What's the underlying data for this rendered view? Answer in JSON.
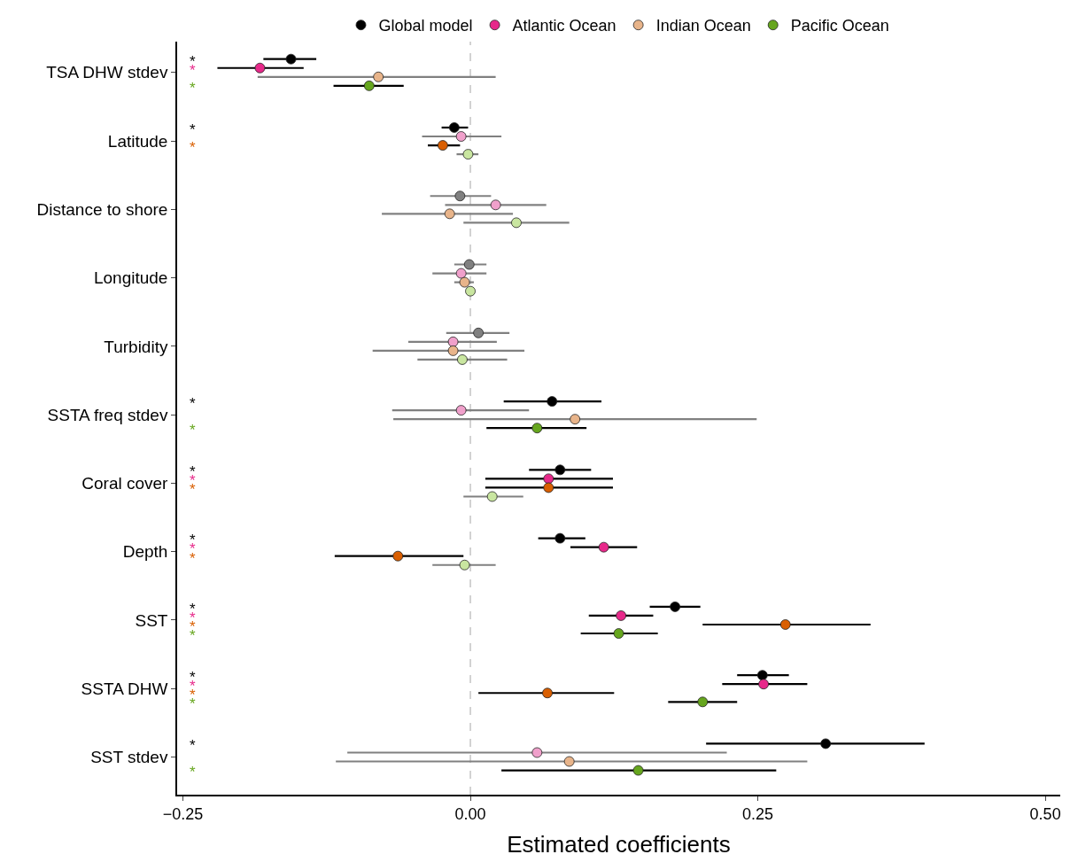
{
  "chart_data": {
    "type": "scatter",
    "orientation": "horizontal",
    "xlabel": "Estimated coefficients",
    "categories": [
      "TSA DHW stdev",
      "Latitude",
      "Distance to shore",
      "Longitude",
      "Turbidity",
      "SSTA freq stdev",
      "Coral cover",
      "Depth",
      "SST",
      "SSTA DHW",
      "SST stdev"
    ],
    "series": [
      {
        "name": "Global model",
        "color": "#000000",
        "values": [
          -0.156,
          -0.014,
          -0.009,
          -0.001,
          0.007,
          0.071,
          0.078,
          0.078,
          0.178,
          0.254,
          0.309
        ],
        "colors": [
          "#000000",
          "#000000",
          "#808080",
          "#808080",
          "#808080",
          "#000000",
          "#000000",
          "#000000",
          "#000000",
          "#000000",
          "#000000"
        ],
        "errors": [
          [
            -0.18,
            -0.134
          ],
          [
            -0.025,
            -0.002
          ],
          [
            -0.035,
            0.018
          ],
          [
            -0.014,
            0.014
          ],
          [
            -0.021,
            0.034
          ],
          [
            0.029,
            0.114
          ],
          [
            0.051,
            0.105
          ],
          [
            0.059,
            0.1
          ],
          [
            0.156,
            0.2
          ],
          [
            0.232,
            0.277
          ],
          [
            0.205,
            0.395
          ]
        ]
      },
      {
        "name": "Atlantic Ocean",
        "color": "#e7298a",
        "values": [
          -0.183,
          -0.008,
          0.022,
          -0.008,
          -0.015,
          -0.008,
          0.068,
          0.116,
          0.131,
          0.255,
          0.058
        ],
        "colors": [
          "#e7298a",
          "#f0a0cb",
          "#f0a0cb",
          "#f0a0cb",
          "#f0a0cb",
          "#f0a0cb",
          "#e7298a",
          "#e7298a",
          "#e7298a",
          "#e7298a",
          "#f0a0cb"
        ],
        "errors": [
          [
            -0.22,
            -0.145
          ],
          [
            -0.042,
            0.027
          ],
          [
            -0.022,
            0.066
          ],
          [
            -0.033,
            0.014
          ],
          [
            -0.054,
            0.023
          ],
          [
            -0.068,
            0.051
          ],
          [
            0.013,
            0.124
          ],
          [
            0.087,
            0.145
          ],
          [
            0.103,
            0.159
          ],
          [
            0.219,
            0.293
          ],
          [
            -0.107,
            0.223
          ]
        ]
      },
      {
        "name": "Indian Ocean",
        "color": "#d95f02",
        "values": [
          -0.08,
          -0.024,
          -0.018,
          -0.005,
          -0.015,
          0.091,
          0.068,
          -0.063,
          0.274,
          0.067,
          0.086
        ],
        "colors": [
          "#e8b48a",
          "#d95f02",
          "#e8b48a",
          "#e8b48a",
          "#e8b48a",
          "#e8b48a",
          "#d95f02",
          "#d95f02",
          "#d95f02",
          "#d95f02",
          "#e8b48a"
        ],
        "errors": [
          [
            -0.185,
            0.022
          ],
          [
            -0.037,
            -0.009
          ],
          [
            -0.077,
            0.037
          ],
          [
            -0.014,
            0.003
          ],
          [
            -0.085,
            0.047
          ],
          [
            -0.067,
            0.249
          ],
          [
            0.013,
            0.124
          ],
          [
            -0.118,
            -0.006
          ],
          [
            0.202,
            0.348
          ],
          [
            0.007,
            0.125
          ],
          [
            -0.117,
            0.293
          ]
        ]
      },
      {
        "name": "Pacific Ocean",
        "color": "#66a61e",
        "values": [
          -0.088,
          -0.002,
          0.04,
          0.0,
          -0.007,
          0.058,
          0.019,
          -0.005,
          0.129,
          0.202,
          0.146
        ],
        "colors": [
          "#66a61e",
          "#c9e6a0",
          "#c9e6a0",
          "#c9e6a0",
          "#c9e6a0",
          "#66a61e",
          "#c9e6a0",
          "#c9e6a0",
          "#66a61e",
          "#66a61e",
          "#66a61e"
        ],
        "errors": [
          [
            -0.119,
            -0.058
          ],
          [
            -0.012,
            0.007
          ],
          [
            -0.006,
            0.086
          ],
          [
            -0.002,
            0.002
          ],
          [
            -0.046,
            0.032
          ],
          [
            0.014,
            0.101
          ],
          [
            -0.006,
            0.046
          ],
          [
            -0.033,
            0.022
          ],
          [
            0.096,
            0.163
          ],
          [
            0.172,
            0.232
          ],
          [
            0.027,
            0.266
          ]
        ]
      }
    ],
    "xlim": [
      -0.255,
      0.513
    ],
    "xticks": [
      {
        "value": -0.25,
        "label": "−0.25"
      },
      {
        "value": 0,
        "label": "0.00"
      },
      {
        "value": 0.25,
        "label": "0.25"
      },
      {
        "value": 0.5,
        "label": "0.50"
      }
    ],
    "ref_lines": [
      {
        "axis": "x",
        "value": 0,
        "color": "#bbbbbb",
        "line_style": "dashed"
      }
    ],
    "annotations": [
      "*",
      "*",
      "*",
      "*",
      "*",
      "*",
      "*",
      "*",
      "*",
      "*",
      "*",
      "*",
      "*",
      "*",
      "*",
      "*",
      "*",
      "*",
      "*",
      "*",
      "*",
      "*",
      "*"
    ],
    "grid": false,
    "legend": "top",
    "marker": "circle"
  }
}
